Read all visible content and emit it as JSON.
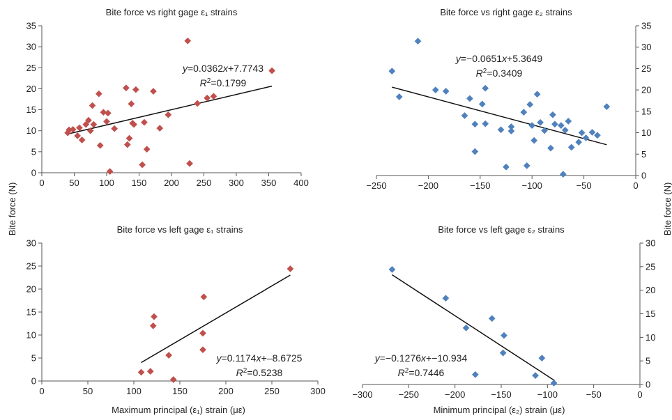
{
  "figure": {
    "ylabel": "Bite force (N)",
    "xlabel_left": "Maximum principal (ε₁) strain (με)",
    "xlabel_right": "Minimum principal (ε₂) strain (με)"
  },
  "chart_data": [
    {
      "id": "tl",
      "type": "scatter",
      "title": "Bite force vs right gage ε₁ strains",
      "xlim": [
        0,
        400
      ],
      "ylim": [
        0,
        35
      ],
      "xticks": [
        0,
        50,
        100,
        150,
        200,
        250,
        300,
        350,
        400
      ],
      "yticks": [
        0,
        5,
        10,
        15,
        20,
        25,
        30,
        35
      ],
      "yaxis": "left",
      "marker_color": "#c0504d",
      "equation": "y=0.0362x+7.7743",
      "r2": "R2=0.1799",
      "trendline": {
        "x": [
          40,
          355
        ],
        "y": [
          9.22,
          20.63
        ]
      },
      "points": {
        "x": [
          40,
          42,
          48,
          55,
          58,
          62,
          68,
          72,
          75,
          78,
          80,
          88,
          90,
          95,
          100,
          102,
          105,
          112,
          130,
          132,
          135,
          138,
          140,
          142,
          145,
          155,
          158,
          162,
          172,
          182,
          195,
          225,
          228,
          240,
          255,
          265,
          355
        ],
        "y": [
          9.5,
          10.2,
          10.3,
          8.8,
          10.7,
          7.8,
          11.5,
          12.5,
          10.0,
          16.0,
          11.5,
          18.8,
          6.5,
          14.4,
          12.2,
          14.2,
          0.3,
          10.5,
          20.2,
          6.7,
          8.2,
          16.4,
          11.8,
          11.5,
          19.8,
          1.9,
          12.0,
          5.6,
          19.4,
          10.6,
          13.8,
          31.4,
          2.2,
          16.5,
          17.8,
          18.2,
          24.3
        ]
      }
    },
    {
      "id": "tr",
      "type": "scatter",
      "title": "Bite force vs right gage ε₂ strains",
      "xlim": [
        -250,
        0
      ],
      "ylim": [
        0,
        35
      ],
      "xticks": [
        -250,
        -200,
        -150,
        -100,
        -50,
        0
      ],
      "xtick_labels": [
        "−250",
        "−200",
        "−150",
        "−100",
        "−50",
        "0"
      ],
      "yticks": [
        0,
        5,
        10,
        15,
        20,
        25,
        30,
        35
      ],
      "yaxis": "right",
      "xaxis_at": "top",
      "marker_color": "#4f81bd",
      "equation": "y=−0.0651x+5.3649",
      "r2": "R2=0.3409",
      "trendline": {
        "x": [
          -235,
          -28
        ],
        "y": [
          20.66,
          7.19
        ]
      },
      "points": {
        "x": [
          -235,
          -228,
          -210,
          -193,
          -183,
          -165,
          -160,
          -155,
          -155,
          -148,
          -145,
          -145,
          -130,
          -125,
          -120,
          -120,
          -108,
          -105,
          -102,
          -100,
          -98,
          -95,
          -92,
          -88,
          -82,
          -80,
          -78,
          -72,
          -70,
          -68,
          -65,
          -62,
          -55,
          -52,
          -48,
          -42,
          -37,
          -28
        ],
        "y": [
          24.4,
          18.4,
          31.4,
          20.0,
          19.7,
          14.0,
          18.0,
          12.0,
          5.6,
          16.7,
          20.4,
          12.1,
          10.7,
          2.0,
          10.4,
          11.4,
          14.8,
          2.3,
          16.6,
          11.7,
          8.2,
          19.0,
          12.4,
          10.5,
          6.4,
          14.2,
          12.0,
          11.7,
          0.3,
          10.6,
          12.7,
          6.6,
          7.8,
          10.0,
          8.8,
          10.1,
          9.4,
          16.1
        ]
      }
    },
    {
      "id": "bl",
      "type": "scatter",
      "title": "Bite force vs left gage ε₁ strains",
      "xlim": [
        0,
        300
      ],
      "ylim": [
        0,
        30
      ],
      "xticks": [
        0,
        50,
        100,
        150,
        200,
        250,
        300
      ],
      "yticks": [
        0,
        5,
        10,
        15,
        20,
        25,
        30
      ],
      "yaxis": "left",
      "marker_color": "#c0504d",
      "equation": "y=0.1174x+–8.6725",
      "r2": "R2=0.5238",
      "trendline": {
        "x": [
          108,
          270
        ],
        "y": [
          4.01,
          23.03
        ]
      },
      "points": {
        "x": [
          108,
          118,
          121,
          122,
          138,
          143,
          175,
          175,
          176,
          270
        ],
        "y": [
          1.9,
          2.1,
          12.0,
          14.0,
          5.6,
          0.3,
          10.4,
          6.8,
          18.3,
          24.4
        ]
      }
    },
    {
      "id": "br",
      "type": "scatter",
      "title": "Bite force vs left gage ε₂ strains",
      "xlim": [
        -300,
        0
      ],
      "ylim": [
        0,
        30
      ],
      "xticks": [
        -300,
        -250,
        -200,
        -150,
        -100,
        -50,
        0
      ],
      "xtick_labels": [
        "−300",
        "−250",
        "−200",
        "−150",
        "−100",
        "−50",
        "0"
      ],
      "yticks": [
        0,
        5,
        10,
        15,
        20,
        25,
        30
      ],
      "yaxis": "right",
      "xaxis_at": "bottom",
      "marker_color": "#4f81bd",
      "equation": "y=−0.1276x+−10.934",
      "r2": "R2=0.7446",
      "trendline": {
        "x": [
          -268,
          -92
        ],
        "y": [
          23.27,
          0.8
        ]
      },
      "points": {
        "x": [
          -268,
          -210,
          -188,
          -178,
          -160,
          -148,
          -147,
          -113,
          -106,
          -93
        ],
        "y": [
          24.4,
          18.3,
          12.0,
          2.1,
          14.0,
          6.7,
          10.4,
          1.9,
          5.6,
          0.3
        ]
      }
    }
  ]
}
